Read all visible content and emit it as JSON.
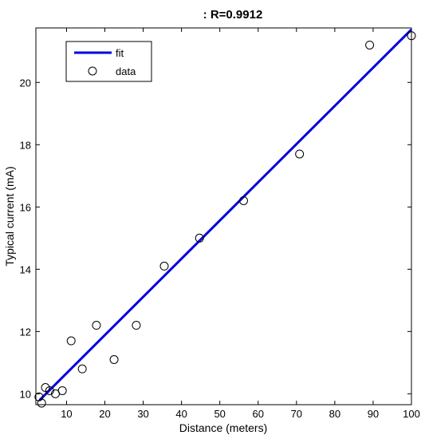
{
  "chart_data": {
    "type": "scatter",
    "title": ": R=0.9912",
    "xlabel": "Distance (meters)",
    "ylabel": "Typical current (mA)",
    "xlim": [
      2,
      100
    ],
    "ylim": [
      9.65,
      21.75
    ],
    "xticks": [
      10,
      20,
      30,
      40,
      50,
      60,
      70,
      80,
      90,
      100
    ],
    "yticks": [
      10,
      12,
      14,
      16,
      18,
      20
    ],
    "grid": false,
    "legend_position": "top-left",
    "series": [
      {
        "name": "fit",
        "kind": "line",
        "color": "#0000e0",
        "x": [
          3,
          100
        ],
        "y": [
          9.8,
          21.7
        ]
      },
      {
        "name": "data",
        "kind": "markers",
        "marker": "open-circle",
        "color": "#000000",
        "x": [
          2.8,
          3.5,
          4.5,
          5.6,
          7.1,
          8.9,
          11.2,
          14.1,
          17.8,
          22.4,
          28.2,
          35.5,
          44.7,
          56.2,
          70.8,
          89.1,
          100
        ],
        "y": [
          9.9,
          9.7,
          10.2,
          10.1,
          10.0,
          10.1,
          11.7,
          10.8,
          12.2,
          11.1,
          12.2,
          14.1,
          15.0,
          16.2,
          17.7,
          21.2,
          21.5
        ]
      }
    ]
  }
}
